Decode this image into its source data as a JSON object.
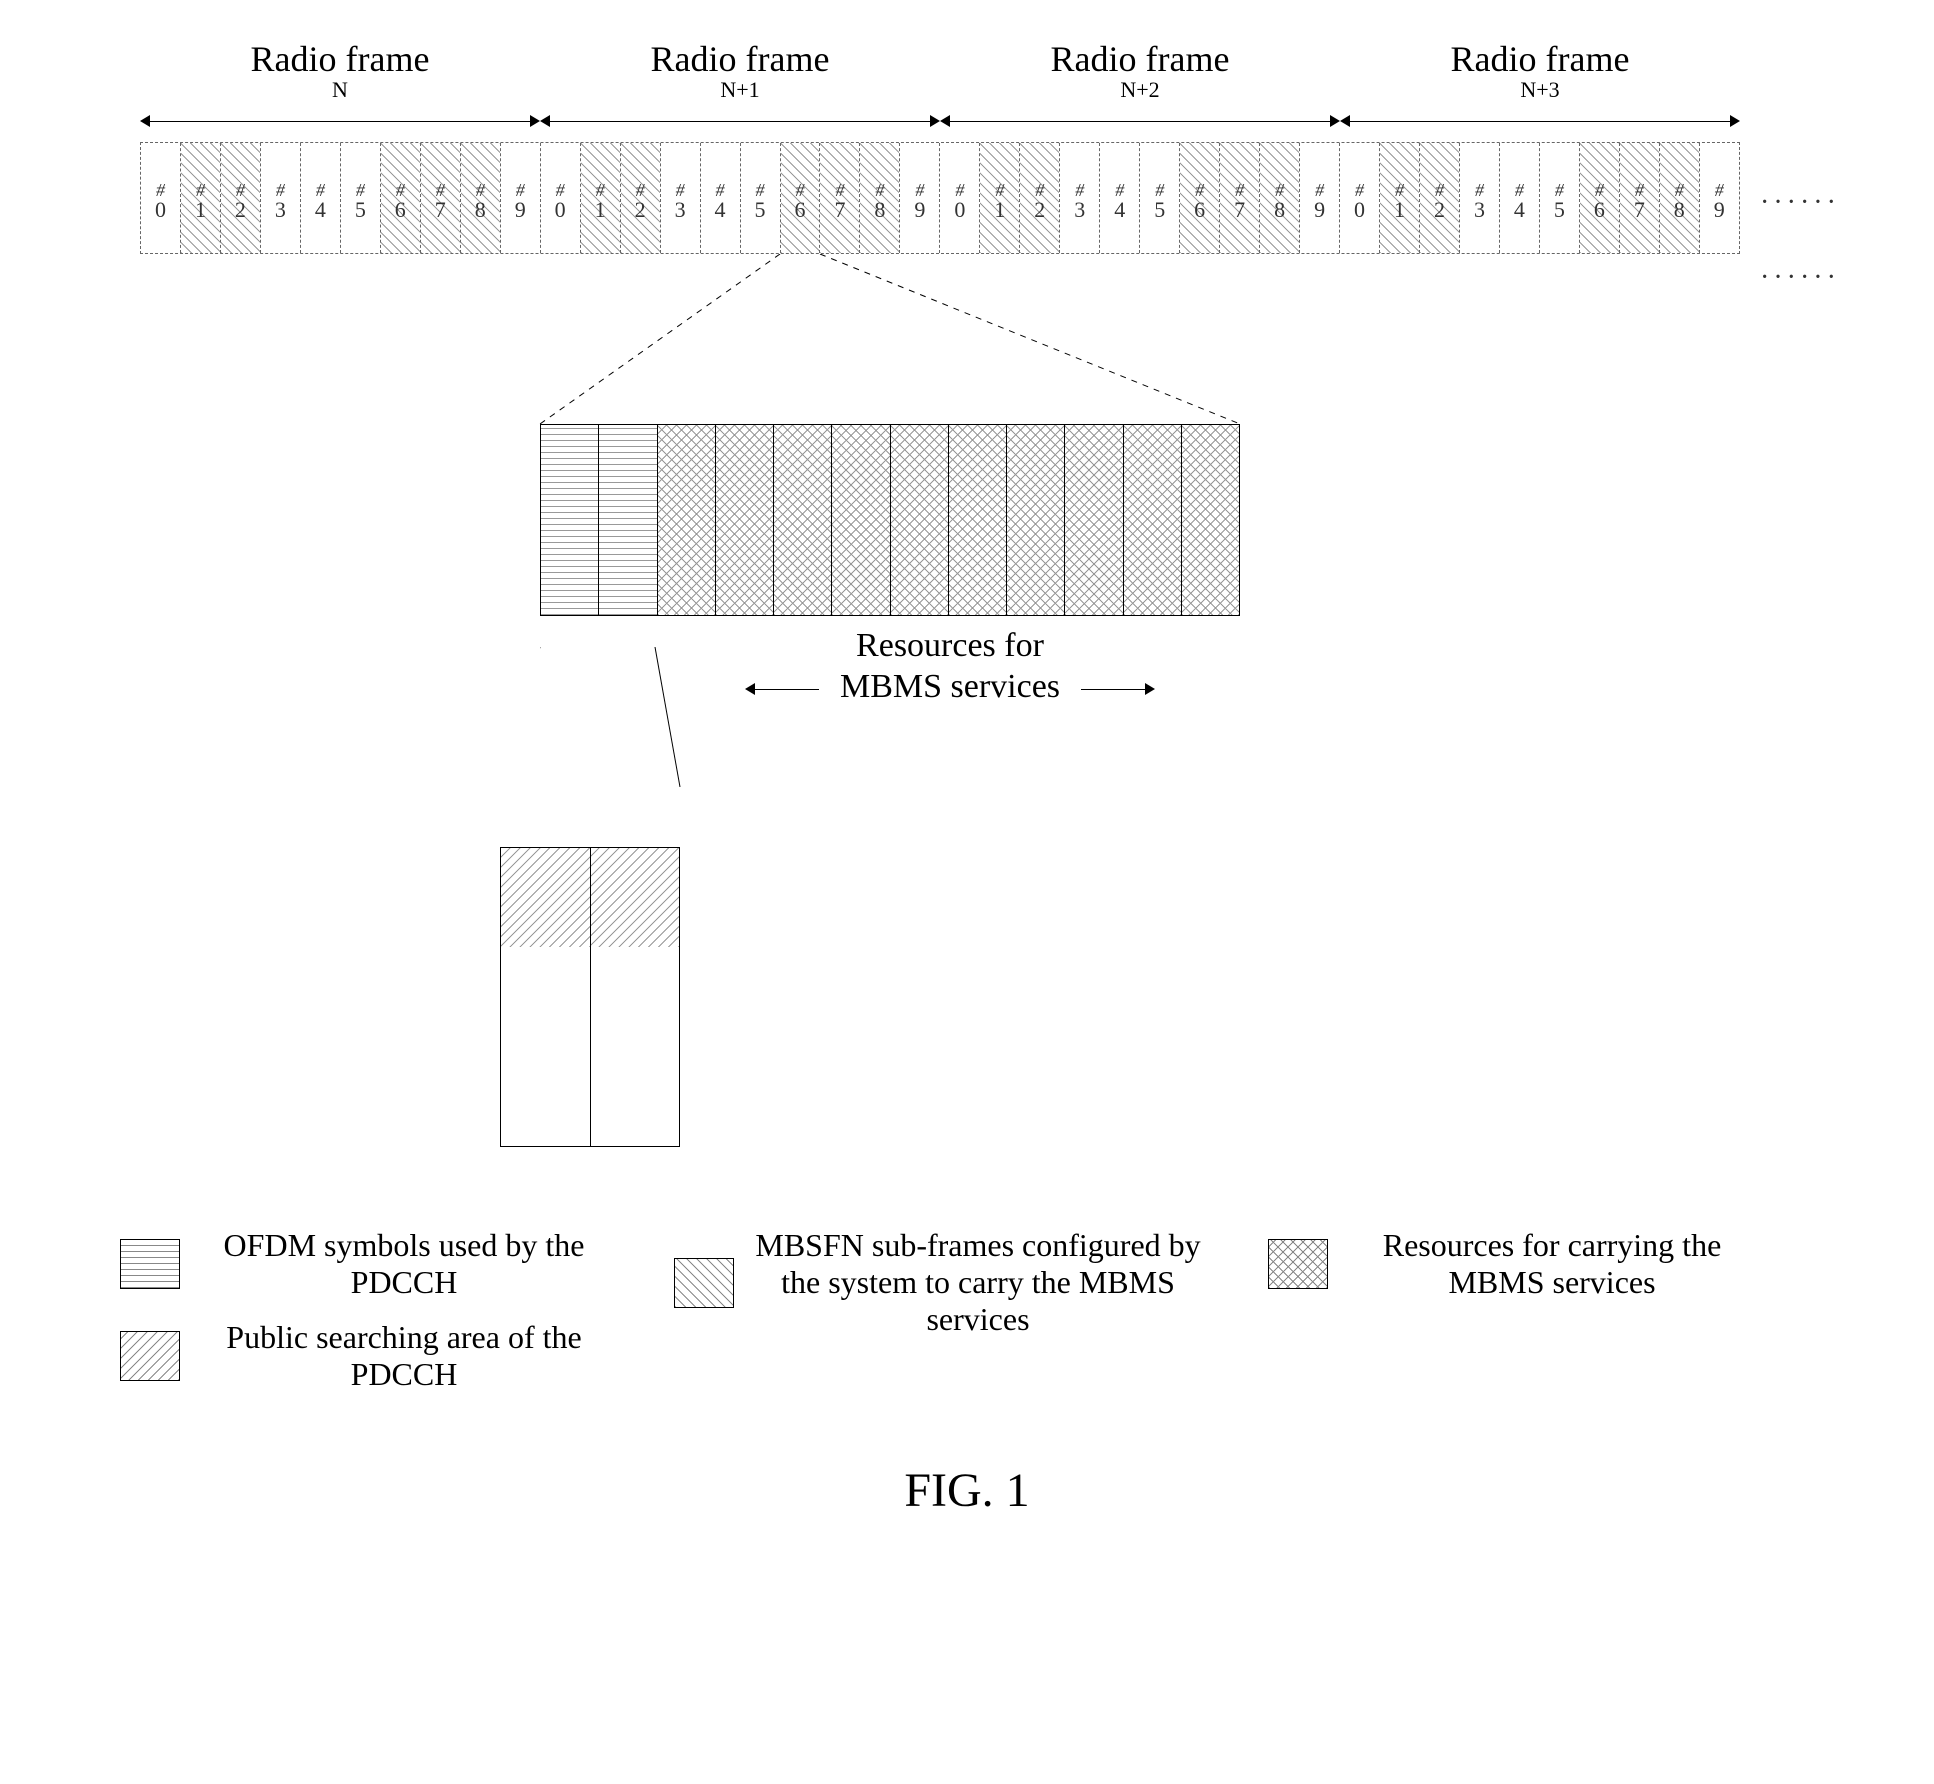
{
  "figure_caption": "FIG. 1",
  "frames": [
    {
      "title": "Radio frame",
      "sub": "N"
    },
    {
      "title": "Radio frame",
      "sub": "N+1"
    },
    {
      "title": "Radio frame",
      "sub": "N+2"
    },
    {
      "title": "Radio frame",
      "sub": "N+3"
    }
  ],
  "subframes_per_frame": 10,
  "subframe_hash": "#",
  "subframe_numbers": [
    "0",
    "1",
    "2",
    "3",
    "4",
    "5",
    "6",
    "7",
    "8",
    "9"
  ],
  "mbsfn_indices": [
    1,
    2,
    6,
    7,
    8
  ],
  "big_block": {
    "pdcch_ofdm_cols": 2,
    "mbms_cols": 10,
    "resources_label_line1": "Resources for",
    "resources_label_line2": "MBMS services"
  },
  "pdcch_block": {
    "cols": 2,
    "public_search_fraction_label": "top"
  },
  "legend": {
    "ofdm_pdcch": "OFDM symbols used by the PDCCH",
    "public_search": "Public searching area of the PDCCH",
    "mbsfn_subframes": "MBSFN sub-frames configured  by the system to carry the MBMS services",
    "resources_mbms": "Resources for carrying the MBMS services"
  },
  "colors": {
    "line": "#000000",
    "hatch": "#555555",
    "background": "#ffffff",
    "text": "#000000",
    "dash_border": "#666666"
  },
  "typography": {
    "main_fontsize_pt": 28,
    "caption_fontsize_pt": 36,
    "font_family": "Times New Roman"
  },
  "patterns": {
    "ofdm_pdcch": "horizontal-lines",
    "mbsfn": "diag-45",
    "resources_mbms": "crosshatch-45",
    "public_search": "diag-135"
  }
}
